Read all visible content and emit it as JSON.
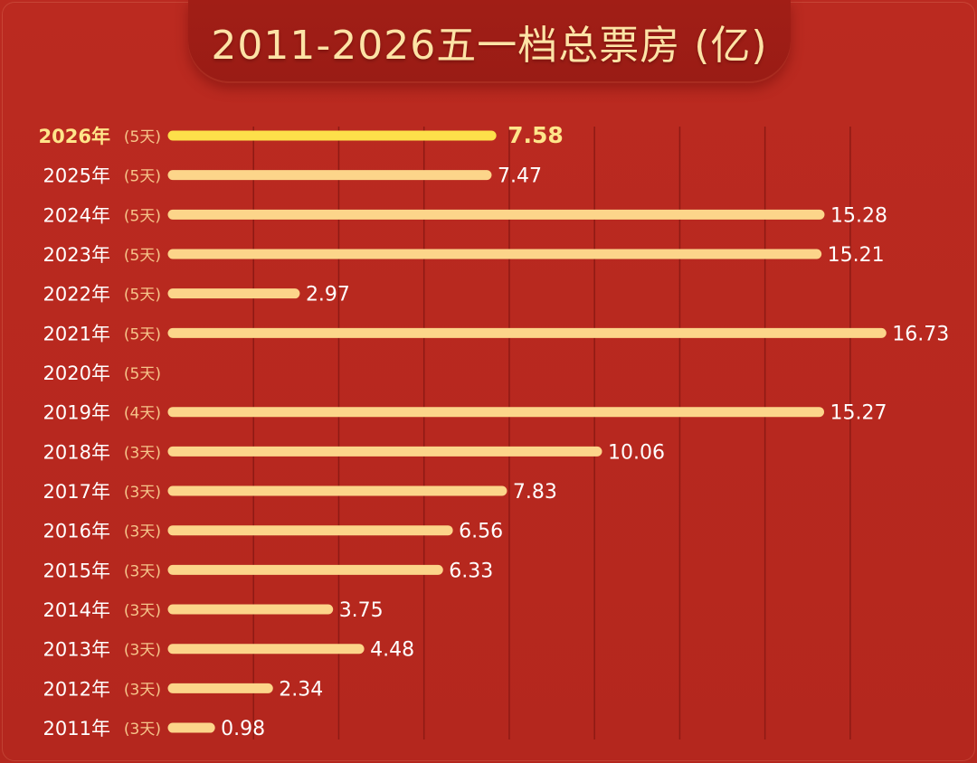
{
  "chart_data": {
    "type": "bar",
    "orientation": "horizontal",
    "title": "2011-2026五一档总票房 (亿)",
    "categories": [
      "2026年",
      "2025年",
      "2024年",
      "2023年",
      "2022年",
      "2021年",
      "2020年",
      "2019年",
      "2018年",
      "2017年",
      "2016年",
      "2015年",
      "2014年",
      "2013年",
      "2012年",
      "2011年"
    ],
    "days": [
      "(5天)",
      "(5天)",
      "(5天)",
      "(5天)",
      "(5天)",
      "(5天)",
      "(5天)",
      "(4天)",
      "(3天)",
      "(3天)",
      "(3天)",
      "(3天)",
      "(3天)",
      "(3天)",
      "(3天)",
      "(3天)"
    ],
    "values": [
      7.58,
      7.47,
      15.28,
      15.21,
      2.97,
      16.73,
      null,
      15.27,
      10.06,
      7.83,
      6.56,
      6.33,
      3.75,
      4.48,
      2.34,
      0.98
    ],
    "labels": [
      "7.58",
      "7.47",
      "15.28",
      "15.21",
      "2.97",
      "16.73",
      "",
      "15.27",
      "10.06",
      "7.83",
      "6.56",
      "6.33",
      "3.75",
      "4.48",
      "2.34",
      "0.98"
    ],
    "highlight_index": 0,
    "xlim": [
      0,
      17
    ],
    "grid": true,
    "colors": {
      "bar": "#fcd58a",
      "bar_highlight": "#fde04a",
      "label": "#ffffff",
      "label_highlight": "#ffe58a",
      "days": "#f6c58a",
      "grid": "#8e1a14"
    }
  }
}
